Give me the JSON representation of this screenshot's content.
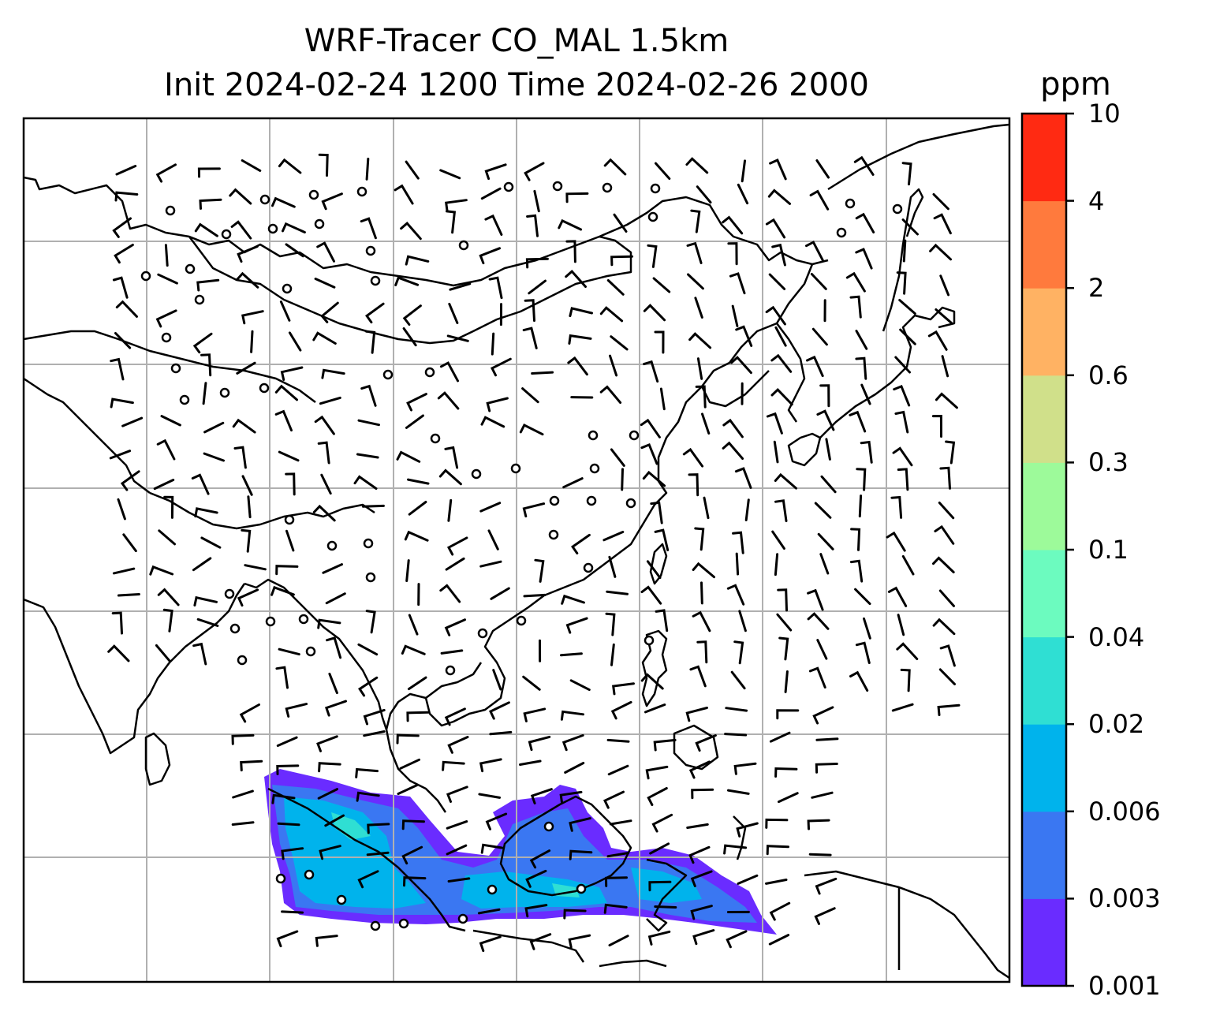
{
  "title": {
    "line1": "WRF-Tracer CO_MAL 1.5km",
    "line2": "Init 2024-02-24 1200 Time 2024-02-26 2000"
  },
  "colorbar": {
    "unit": "ppm",
    "levels": [
      "0.001",
      "0.003",
      "0.006",
      "0.02",
      "0.04",
      "0.1",
      "0.3",
      "0.6",
      "2",
      "4",
      "10"
    ],
    "colors": [
      "#6a2cff",
      "#3a77f2",
      "#00b3ec",
      "#2fdfd3",
      "#6cfbbf",
      "#9dfa9a",
      "#d0e08a",
      "#ffb263",
      "#ff7a3d",
      "#ff2a12"
    ]
  },
  "map": {
    "gridlines": true,
    "coastline_color": "#000000",
    "grid_color": "#b0b0b0",
    "plume_color_levels": [
      "0.001",
      "0.003",
      "0.006",
      "0.02"
    ],
    "wind_barbs": true
  }
}
